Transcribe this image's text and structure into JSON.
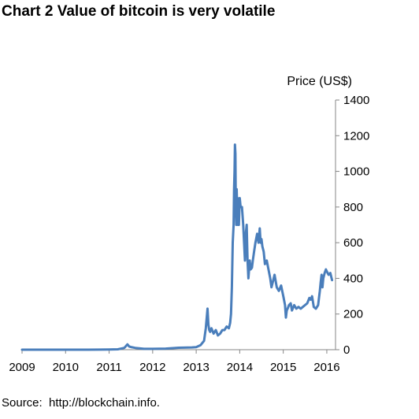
{
  "title": "Chart 2 Value of bitcoin is very volatile",
  "source": "Source:  http://blockchain.info.",
  "chart_data": {
    "type": "line",
    "title": "Chart 2 Value of bitcoin is very volatile",
    "xlabel": "",
    "ylabel": "Price (US$)",
    "xlim": [
      2009,
      2016.2
    ],
    "ylim": [
      0,
      1400
    ],
    "xticks": [
      "2009",
      "2010",
      "2011",
      "2012",
      "2013",
      "2014",
      "2015",
      "2016"
    ],
    "yticks": [
      "0",
      "200",
      "400",
      "600",
      "800",
      "1000",
      "1200",
      "1400"
    ],
    "y_axis_position": "right",
    "grid": false,
    "legend": "none",
    "line_color": "#4a7ebb",
    "series": [
      {
        "x": [
          2009.0,
          2010.0,
          2010.5,
          2011.0,
          2011.2,
          2011.35,
          2011.42,
          2011.46,
          2011.5,
          2011.6,
          2011.8,
          2012.0,
          2012.3,
          2012.6,
          2012.9,
          2013.0,
          2013.1,
          2013.18,
          2013.22,
          2013.26,
          2013.28,
          2013.3,
          2013.32,
          2013.35,
          2013.4,
          2013.45,
          2013.5,
          2013.55,
          2013.6,
          2013.65,
          2013.7,
          2013.75,
          2013.78,
          2013.8,
          2013.82,
          2013.84,
          2013.86,
          2013.87,
          2013.88,
          2013.89,
          2013.9,
          2013.91,
          2013.92,
          2013.93,
          2013.94,
          2013.95,
          2013.96,
          2013.97,
          2013.98,
          2014.0,
          2014.02,
          2014.05,
          2014.08,
          2014.1,
          2014.12,
          2014.14,
          2014.16,
          2014.18,
          2014.2,
          2014.23,
          2014.25,
          2014.28,
          2014.3,
          2014.33,
          2014.36,
          2014.4,
          2014.43,
          2014.46,
          2014.48,
          2014.5,
          2014.52,
          2014.55,
          2014.58,
          2014.62,
          2014.66,
          2014.7,
          2014.73,
          2014.76,
          2014.8,
          2014.85,
          2014.9,
          2014.95,
          2015.0,
          2015.04,
          2015.06,
          2015.08,
          2015.1,
          2015.13,
          2015.17,
          2015.2,
          2015.25,
          2015.3,
          2015.35,
          2015.4,
          2015.45,
          2015.5,
          2015.55,
          2015.6,
          2015.63,
          2015.66,
          2015.7,
          2015.75,
          2015.8,
          2015.82,
          2015.84,
          2015.86,
          2015.88,
          2015.9,
          2015.92,
          2015.95,
          2015.98,
          2016.0,
          2016.04,
          2016.08,
          2016.12
        ],
        "y": [
          0,
          0,
          0,
          1,
          2,
          10,
          30,
          18,
          15,
          10,
          5,
          5,
          6,
          11,
          13,
          14,
          25,
          50,
          120,
          230,
          140,
          110,
          100,
          120,
          90,
          110,
          80,
          90,
          110,
          110,
          130,
          120,
          150,
          200,
          350,
          600,
          700,
          900,
          1000,
          1150,
          1100,
          800,
          700,
          900,
          800,
          850,
          700,
          800,
          700,
          850,
          800,
          800,
          700,
          600,
          500,
          650,
          700,
          500,
          400,
          500,
          450,
          460,
          500,
          550,
          600,
          650,
          600,
          680,
          600,
          620,
          580,
          550,
          480,
          500,
          450,
          400,
          350,
          380,
          420,
          350,
          330,
          360,
          300,
          250,
          180,
          220,
          230,
          250,
          260,
          220,
          250,
          230,
          240,
          230,
          240,
          250,
          260,
          290,
          280,
          300,
          240,
          230,
          250,
          290,
          330,
          380,
          420,
          350,
          400,
          430,
          450,
          440,
          420,
          430,
          390
        ]
      }
    ]
  }
}
